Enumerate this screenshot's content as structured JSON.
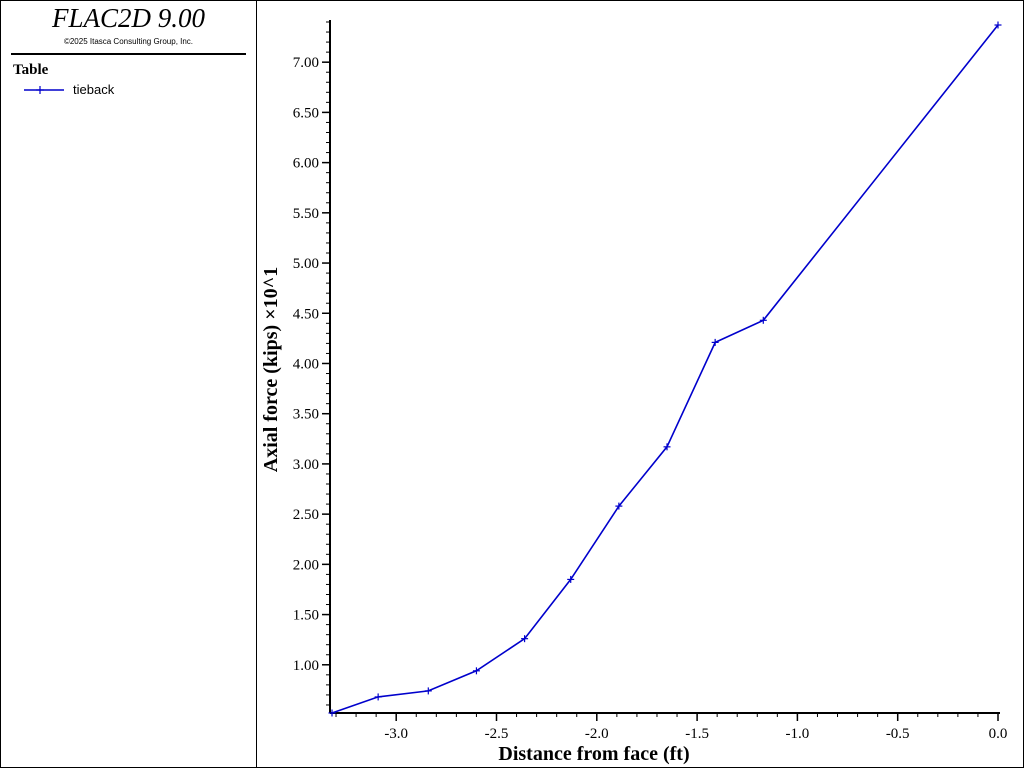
{
  "app": {
    "title": "FLAC2D 9.00",
    "copyright": "©2025 Itasca Consulting Group, Inc."
  },
  "legend": {
    "heading": "Table",
    "entries": [
      {
        "label": "tieback",
        "color": "#0000cc"
      }
    ]
  },
  "chart_data": {
    "type": "line",
    "xlabel": "Distance from face (ft)",
    "ylabel": "Axial force (kips) ×10^1",
    "xlim": [
      -3.33,
      0.0
    ],
    "ylim": [
      0.52,
      7.4
    ],
    "xticks": [
      -3.0,
      -2.5,
      -2.0,
      -1.5,
      -1.0,
      -0.5,
      0.0
    ],
    "xtick_labels": [
      "-3.0",
      "-2.5",
      "-2.0",
      "-1.5",
      "-1.0",
      "-0.5",
      "0.0"
    ],
    "yticks": [
      1.0,
      1.5,
      2.0,
      2.5,
      3.0,
      3.5,
      4.0,
      4.5,
      5.0,
      5.5,
      6.0,
      6.5,
      7.0
    ],
    "ytick_labels": [
      "1.00",
      "1.50",
      "2.00",
      "2.50",
      "3.00",
      "3.50",
      "4.00",
      "4.50",
      "5.00",
      "5.50",
      "6.00",
      "6.50",
      "7.00"
    ],
    "grid": false,
    "series": [
      {
        "name": "tieback",
        "color": "#0000cc",
        "marker": "+",
        "x": [
          -3.32,
          -3.09,
          -2.84,
          -2.6,
          -2.36,
          -2.13,
          -1.89,
          -1.65,
          -1.41,
          -1.17,
          0.0
        ],
        "y": [
          0.52,
          0.68,
          0.74,
          0.94,
          1.26,
          1.85,
          2.58,
          3.17,
          4.21,
          4.43,
          7.37
        ]
      }
    ]
  }
}
